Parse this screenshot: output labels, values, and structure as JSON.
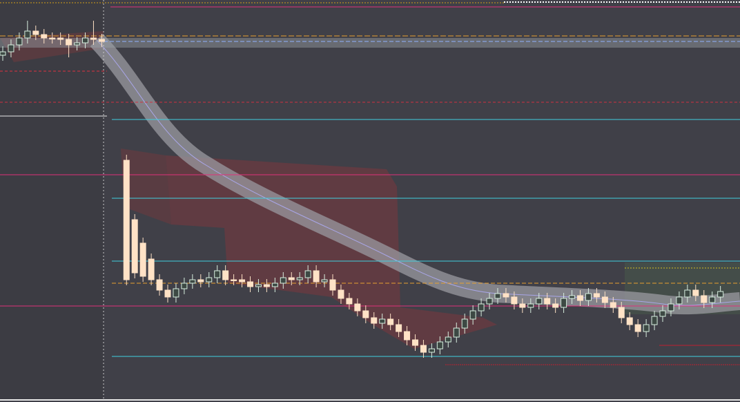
{
  "chart_data": {
    "type": "candlestick",
    "ylim": [
      18,
      600
    ],
    "up_color": "#3d4944",
    "up_edge": "#d8efe0",
    "down_color": "#ffe2c6",
    "open": [
      520,
      525,
      535,
      545,
      555,
      550,
      545,
      545,
      543,
      535,
      538,
      545,
      543,
      null,
      null,
      368,
      282,
      248,
      225,
      195,
      180,
      170,
      182,
      190,
      195,
      192,
      198,
      208,
      195,
      195,
      192,
      185,
      188,
      185,
      190,
      198,
      195,
      198,
      208,
      192,
      195,
      180,
      168,
      160,
      150,
      140,
      132,
      138,
      130,
      120,
      108,
      100,
      90,
      95,
      105,
      112,
      125,
      138,
      150,
      160,
      168,
      175,
      170,
      160,
      155,
      160,
      168,
      160,
      155,
      168,
      172,
      165,
      175,
      170,
      162,
      155,
      140,
      130,
      120,
      130,
      142,
      150,
      160,
      170,
      180,
      172,
      162,
      170
    ],
    "high": [
      533,
      543,
      553,
      570,
      563,
      558,
      553,
      553,
      551,
      546,
      553,
      570,
      551,
      null,
      null,
      376,
      290,
      256,
      233,
      203,
      188,
      190,
      198,
      203,
      203,
      206,
      216,
      216,
      203,
      203,
      200,
      196,
      196,
      198,
      206,
      206,
      206,
      216,
      216,
      203,
      203,
      188,
      176,
      168,
      158,
      148,
      146,
      146,
      138,
      128,
      116,
      108,
      103,
      113,
      120,
      133,
      146,
      158,
      168,
      176,
      183,
      183,
      178,
      168,
      168,
      176,
      176,
      168,
      176,
      180,
      180,
      183,
      183,
      178,
      170,
      163,
      148,
      138,
      138,
      150,
      158,
      168,
      178,
      188,
      188,
      180,
      178,
      186
    ],
    "low": [
      512,
      517,
      527,
      537,
      542,
      537,
      537,
      535,
      517,
      527,
      530,
      535,
      532,
      null,
      null,
      187,
      197,
      192,
      187,
      172,
      162,
      162,
      174,
      182,
      184,
      184,
      190,
      187,
      187,
      184,
      177,
      177,
      177,
      177,
      182,
      187,
      187,
      190,
      184,
      184,
      172,
      160,
      152,
      142,
      132,
      124,
      124,
      122,
      112,
      100,
      92,
      82,
      82,
      87,
      97,
      104,
      117,
      130,
      142,
      152,
      160,
      162,
      152,
      147,
      147,
      152,
      152,
      147,
      147,
      160,
      157,
      157,
      162,
      154,
      147,
      132,
      122,
      112,
      112,
      122,
      134,
      142,
      152,
      162,
      164,
      154,
      154,
      162
    ],
    "close": [
      525,
      535,
      545,
      555,
      550,
      545,
      545,
      543,
      535,
      538,
      545,
      543,
      540,
      null,
      null,
      195,
      205,
      200,
      195,
      180,
      170,
      182,
      190,
      195,
      192,
      198,
      208,
      195,
      195,
      192,
      185,
      188,
      185,
      190,
      198,
      195,
      198,
      208,
      192,
      195,
      180,
      168,
      160,
      150,
      140,
      132,
      138,
      130,
      120,
      108,
      100,
      90,
      95,
      105,
      112,
      125,
      138,
      150,
      160,
      168,
      175,
      170,
      160,
      155,
      160,
      168,
      160,
      155,
      168,
      172,
      165,
      175,
      170,
      162,
      155,
      140,
      130,
      120,
      130,
      142,
      150,
      160,
      170,
      180,
      172,
      162,
      170,
      178
    ]
  }
}
